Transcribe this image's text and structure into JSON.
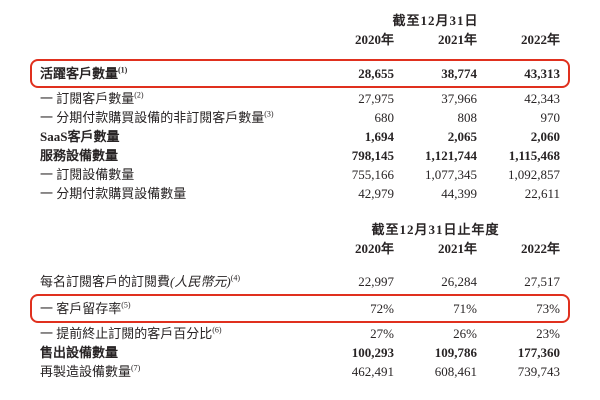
{
  "colors": {
    "highlight_border": "#e0301e",
    "text": "#282425",
    "background": "#ffffff"
  },
  "table1": {
    "header": "截至12月31日",
    "years": [
      "2020年",
      "2021年",
      "2022年"
    ],
    "rows": [
      {
        "label": "活躍客戶數量",
        "sup": "(1)",
        "values": [
          "28,655",
          "38,774",
          "43,313"
        ],
        "bold": true,
        "highlighted": true
      },
      {
        "label": "一 訂閱客戶數量",
        "sup": "(2)",
        "values": [
          "27,975",
          "37,966",
          "42,343"
        ]
      },
      {
        "label": "一 分期付款購買設備的非訂閱客戶數量",
        "sup": "(3)",
        "values": [
          "680",
          "808",
          "970"
        ]
      },
      {
        "label": "SaaS客戶數量",
        "values": [
          "1,694",
          "2,065",
          "2,060"
        ],
        "bold": true
      },
      {
        "label": "服務設備數量",
        "values": [
          "798,145",
          "1,121,744",
          "1,115,468"
        ],
        "bold": true
      },
      {
        "label": "一 訂閱設備數量",
        "values": [
          "755,166",
          "1,077,345",
          "1,092,857"
        ]
      },
      {
        "label": "一 分期付款購買設備數量",
        "values": [
          "42,979",
          "44,399",
          "22,611"
        ]
      }
    ]
  },
  "table2": {
    "header": "截至12月31日止年度",
    "years": [
      "2020年",
      "2021年",
      "2022年"
    ],
    "rows": [
      {
        "label": "每名訂閱客戶的訂閱費",
        "label_paren": "(人民幣元)",
        "sup": "(4)",
        "values": [
          "22,997",
          "26,284",
          "27,517"
        ]
      },
      {
        "label": "一 客戶留存率",
        "sup": "(5)",
        "values": [
          "72%",
          "71%",
          "73%"
        ],
        "highlighted": true
      },
      {
        "label": "一 提前終止訂閱的客戶百分比",
        "sup": "(6)",
        "values": [
          "27%",
          "26%",
          "23%"
        ]
      },
      {
        "label": "售出設備數量",
        "values": [
          "100,293",
          "109,786",
          "177,360"
        ],
        "bold": true
      },
      {
        "label": "再製造設備數量",
        "sup": "(7)",
        "values": [
          "462,491",
          "608,461",
          "739,743"
        ]
      }
    ]
  }
}
